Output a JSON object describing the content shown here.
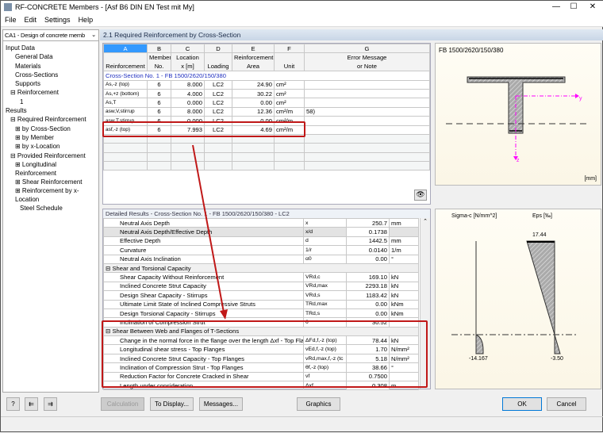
{
  "window": {
    "title": "RF-CONCRETE Members - [Asf B6 DIN EN Test mit My]",
    "minimize": "—",
    "maximize": "☐",
    "close": "✕"
  },
  "menu": [
    "File",
    "Edit",
    "Settings",
    "Help"
  ],
  "case_selector": "CA1 - Design of concrete memb",
  "tree": [
    {
      "label": "Input Data",
      "level": 0
    },
    {
      "label": "General Data",
      "level": 2
    },
    {
      "label": "Materials",
      "level": 2
    },
    {
      "label": "Cross-Sections",
      "level": 2
    },
    {
      "label": "Supports",
      "level": 2
    },
    {
      "label": "⊟ Reinforcement",
      "level": 1
    },
    {
      "label": "1",
      "level": 3
    },
    {
      "label": "Results",
      "level": 0
    },
    {
      "label": "⊟ Required Reinforcement",
      "level": 1
    },
    {
      "label": "⊞ by Cross-Section",
      "level": 2
    },
    {
      "label": "⊞ by Member",
      "level": 2
    },
    {
      "label": "⊞ by x-Location",
      "level": 2
    },
    {
      "label": "⊟ Provided Reinforcement",
      "level": 1
    },
    {
      "label": "⊞ Longitudinal Reinforcement",
      "level": 2
    },
    {
      "label": "⊞ Shear Reinforcement",
      "level": 2
    },
    {
      "label": "⊞ Reinforcement by x-Location",
      "level": 2
    },
    {
      "label": "Steel Schedule",
      "level": 3
    }
  ],
  "section_title": "2.1 Required Reinforcement by Cross-Section",
  "table": {
    "col_letters": [
      "A",
      "B",
      "C",
      "D",
      "E",
      "F",
      "G"
    ],
    "headers": [
      [
        "",
        "Member",
        "Location",
        "",
        "Reinforcement",
        "",
        "Error Message"
      ],
      [
        "Reinforcement",
        "No.",
        "x [m]",
        "Loading",
        "Area",
        "Unit",
        "or Note"
      ]
    ],
    "group": "Cross-Section No. 1 - FB 1500/2620/150/380",
    "rows": [
      [
        "As,-z (top)",
        "6",
        "8.000",
        "LC2",
        "24.90",
        "cm²",
        ""
      ],
      [
        "As,+z (bottom)",
        "6",
        "4.000",
        "LC2",
        "30.22",
        "cm²",
        ""
      ],
      [
        "As,T",
        "6",
        "0.000",
        "LC2",
        "0.00",
        "cm²",
        ""
      ],
      [
        "asw,V,stirrup",
        "6",
        "8.000",
        "LC2",
        "12.36",
        "cm²/m",
        "58)"
      ],
      [
        "asw,T,stirrup",
        "6",
        "0.000",
        "LC2",
        "0.00",
        "cm²/m",
        ""
      ],
      [
        "asf,-z (top)",
        "6",
        "7.993",
        "LC2",
        "4.69",
        "cm²/m",
        ""
      ]
    ]
  },
  "section_graphic": {
    "title": "FB 1500/2620/150/380",
    "unit": "[mm]",
    "axis_y": "y",
    "axis_z": "z"
  },
  "details": {
    "title": "Detailed Results  -  Cross-Section No. 1 - FB 1500/2620/150/380  -  LC2",
    "rows": [
      {
        "name": "Neutral Axis Depth",
        "sym": "x",
        "val": "250.7",
        "unit": "mm"
      },
      {
        "name": "Neutral Axis Depth/Effective Depth",
        "sym": "x/d",
        "val": "0.1738",
        "unit": ""
      },
      {
        "name": "Effective Depth",
        "sym": "d",
        "val": "1442.5",
        "unit": "mm"
      },
      {
        "name": "Curvature",
        "sym": "1/r",
        "val": "0.0140",
        "unit": "1/m"
      },
      {
        "name": "Neutral Axis Inclination",
        "sym": "α0",
        "val": "0.00",
        "unit": "°"
      },
      {
        "group": "⊟ Shear and Torsional Capacity"
      },
      {
        "name": "Shear Capacity Without Reinforcement",
        "sym": "VRd,c",
        "val": "169.10",
        "unit": "kN"
      },
      {
        "name": "Inclined Concrete Strut Capacity",
        "sym": "VRd,max",
        "val": "2293.18",
        "unit": "kN"
      },
      {
        "name": "Design Shear Capacity - Stirrups",
        "sym": "VRd,s",
        "val": "1183.42",
        "unit": "kN"
      },
      {
        "name": "Ultimate Limit State of Inclined Compressive Struts",
        "sym": "TRd,max",
        "val": "0.00",
        "unit": "kNm"
      },
      {
        "name": "Design Torsional Capacity - Stirrups",
        "sym": "TRd,s",
        "val": "0.00",
        "unit": "kNm"
      },
      {
        "name": "Inclination of Compression Strut",
        "sym": "θ",
        "val": "30.52",
        "unit": "°"
      },
      {
        "group": "⊟ Shear Between Web and Flanges of T-Sections"
      },
      {
        "name": "Change in the normal force in the flange over the length Δxf - Top Flan",
        "sym": "ΔFd,f,-z (top)",
        "val": "78.44",
        "unit": "kN"
      },
      {
        "name": "Longitudinal shear stress - Top Flanges",
        "sym": "vEd,f,-z (top)",
        "val": "1.70",
        "unit": "N/mm²"
      },
      {
        "name": "Inclined Concrete Strut Capacity - Top Flanges",
        "sym": "vRd,max,f,-z (tc",
        "val": "5.18",
        "unit": "N/mm²"
      },
      {
        "name": "Inclination of Compression Strut - Top Flanges",
        "sym": "θf,-z (top)",
        "val": "38.66",
        "unit": "°"
      },
      {
        "name": "Reduction Factor for Concrete Cracked in Shear",
        "sym": "νf",
        "val": "0.7500",
        "unit": ""
      },
      {
        "name": "Length under consideration",
        "sym": "Δxf",
        "val": "0.308",
        "unit": "m"
      }
    ]
  },
  "stress_graphic": {
    "sigma_label": "Sigma-c [N/mm^2]",
    "eps_label": "Eps [‰]",
    "sigma_min": "-14.167",
    "eps_top": "17.44",
    "eps_bottom": "-3.50"
  },
  "buttons": {
    "calculation": "Calculation",
    "to_display": "To Display...",
    "messages": "Messages...",
    "graphics": "Graphics",
    "ok": "OK",
    "cancel": "Cancel"
  },
  "colors": {
    "annotation": "#c01818",
    "axis": "#ff00ff",
    "header": "#c9d6e6"
  }
}
